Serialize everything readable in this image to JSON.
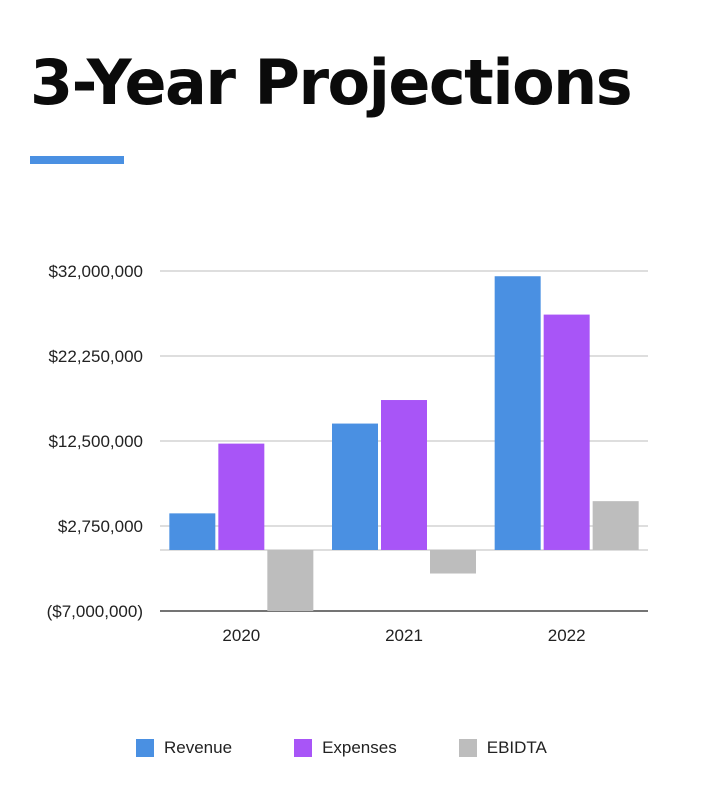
{
  "title": "3-Year Projections",
  "colors": {
    "accent": "#4a90e2",
    "revenue": "#4a90e2",
    "expenses": "#a855f7",
    "ebidta": "#bdbdbd"
  },
  "chart_data": {
    "type": "bar",
    "title": "3-Year Projections",
    "categories": [
      "2020",
      "2021",
      "2022"
    ],
    "series": [
      {
        "name": "Revenue",
        "values": [
          4200000,
          14500000,
          31400000
        ]
      },
      {
        "name": "Expenses",
        "values": [
          12200000,
          17200000,
          27000000
        ]
      },
      {
        "name": "EBIDTA",
        "values": [
          -7000000,
          -2700000,
          5600000
        ]
      }
    ],
    "ylim": [
      -7000000,
      32000000
    ],
    "yticks": [
      -7000000,
      2750000,
      12500000,
      22250000,
      32000000
    ],
    "ytick_labels": [
      "($7,000,000)",
      "$2,750,000",
      "$12,500,000",
      "$22,250,000",
      "$32,000,000"
    ],
    "xlabel": "",
    "ylabel": "",
    "grid": true,
    "legend_position": "bottom"
  }
}
